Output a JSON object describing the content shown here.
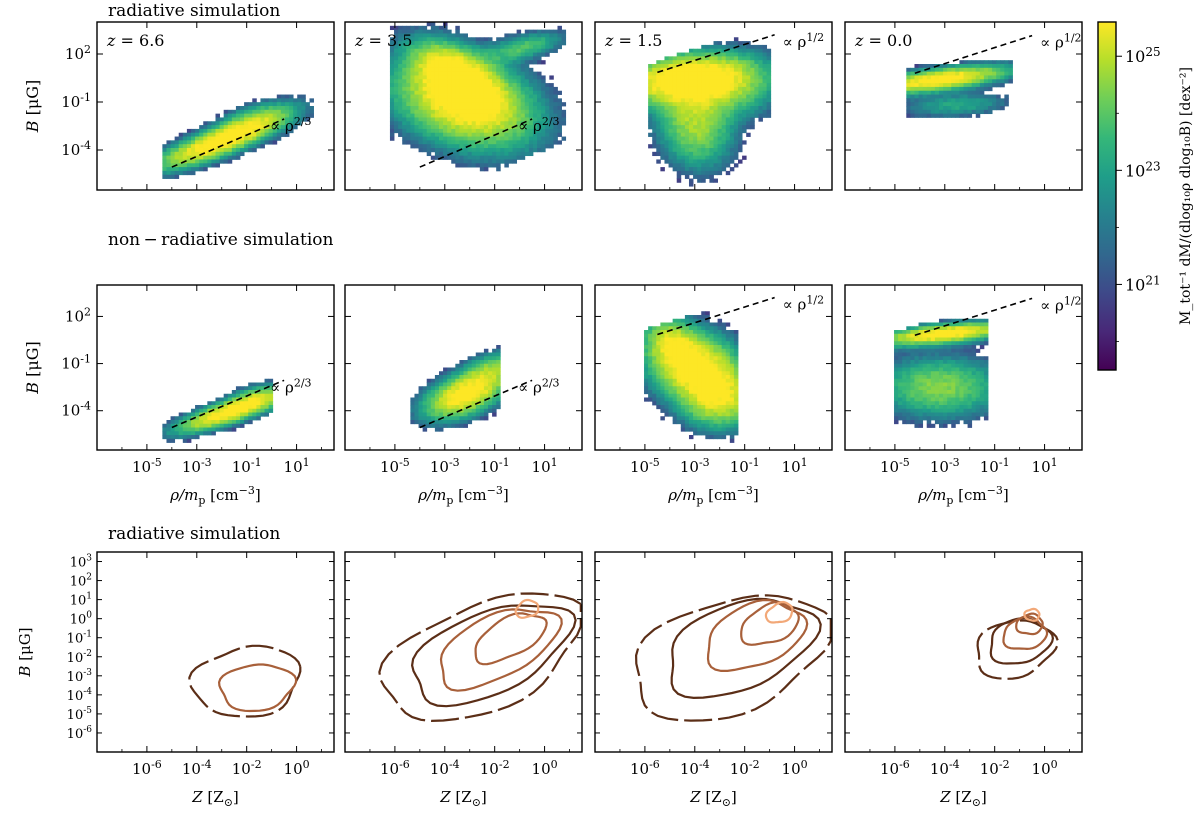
{
  "figure": {
    "row_titles": [
      "radiative simulation",
      "non − radiative simulation",
      "radiative simulation"
    ],
    "colors": {
      "contour_dark": "#5b2e17",
      "contour_mid": "#a8603a",
      "contour_light": "#f2a878",
      "dashed": "#000000"
    }
  },
  "chart_data": [
    {
      "type": "heatmap",
      "group": "radiative",
      "row": 0,
      "xlabel": "ρ/m_p [cm⁻³]",
      "ylabel": "B [μG]",
      "xlim_log10": [
        -7,
        2.5
      ],
      "ylim_log10": [
        -6.5,
        4.0
      ],
      "xticks": [
        "10⁻⁵",
        "10⁻³",
        "10⁻¹",
        "10¹"
      ],
      "yticks": [
        "10⁻⁴",
        "10⁻¹",
        "10²"
      ],
      "panels": [
        {
          "label": "z = 6.6",
          "fit_label": "∝ ρ^2/3",
          "fit_slope": 0.667,
          "fit_point": [
            -3,
            -4.4
          ],
          "fit_x": [
            -4.0,
            0.5
          ]
        },
        {
          "label": "z = 3.5",
          "fit_label": "∝ ρ^2/3",
          "fit_slope": 0.667,
          "fit_point": [
            -3,
            -4.4
          ],
          "fit_x": [
            -4.0,
            0.5
          ]
        },
        {
          "label": "z = 1.5",
          "fit_label": "∝ ρ^1/2",
          "fit_slope": 0.5,
          "fit_point": [
            -3,
            1.6
          ],
          "fit_x": [
            -4.5,
            0.2
          ]
        },
        {
          "label": "z = 0.0",
          "fit_label": "∝ ρ^1/2",
          "fit_slope": 0.5,
          "fit_point": [
            -3,
            1.4
          ],
          "fit_x": [
            -4.2,
            0.5
          ]
        }
      ]
    },
    {
      "type": "heatmap",
      "group": "non-radiative",
      "row": 1,
      "xlabel": "ρ/m_p [cm⁻³]",
      "ylabel": "B [μG]",
      "xlim_log10": [
        -7,
        2.5
      ],
      "ylim_log10": [
        -6.5,
        4.0
      ],
      "xticks": [
        "10⁻⁵",
        "10⁻³",
        "10⁻¹",
        "10¹"
      ],
      "yticks": [
        "10⁻⁴",
        "10⁻¹",
        "10²"
      ],
      "panels": [
        {
          "fit_label": "∝ ρ^2/3",
          "fit_slope": 0.667,
          "fit_point": [
            -3,
            -4.4
          ],
          "fit_x": [
            -4.0,
            0.5
          ]
        },
        {
          "fit_label": "∝ ρ^2/3",
          "fit_slope": 0.667,
          "fit_point": [
            -3,
            -4.4
          ],
          "fit_x": [
            -4.0,
            0.5
          ]
        },
        {
          "fit_label": "∝ ρ^1/2",
          "fit_slope": 0.5,
          "fit_point": [
            -3,
            1.6
          ],
          "fit_x": [
            -4.5,
            0.2
          ]
        },
        {
          "fit_label": "∝ ρ^1/2",
          "fit_slope": 0.5,
          "fit_point": [
            -3,
            1.4
          ],
          "fit_x": [
            -4.2,
            0.5
          ]
        }
      ]
    },
    {
      "type": "contour",
      "group": "radiative",
      "row": 2,
      "xlabel": "Z [Z⊙]",
      "ylabel": "B [μG]",
      "xlim_log10": [
        -8,
        1.5
      ],
      "ylim_log10": [
        -7,
        3.5
      ],
      "xticks": [
        "10⁻⁶",
        "10⁻⁴",
        "10⁻²",
        "10⁰"
      ],
      "yticks": [
        "10⁻⁶",
        "10⁻⁵",
        "10⁻⁴",
        "10⁻³",
        "10⁻²",
        "10⁻¹",
        "10⁰",
        "10¹",
        "10²",
        "10³"
      ],
      "panels": [
        {
          "contours": [
            {
              "c": [
                -2.0,
                -3.3
              ],
              "r": [
                2.2,
                1.8
              ],
              "rot": 20,
              "level": 0
            },
            {
              "c": [
                -1.6,
                -3.6
              ],
              "r": [
                1.5,
                1.2
              ],
              "rot": 15,
              "level": 1
            }
          ]
        },
        {
          "contours": [
            {
              "c": [
                -2.5,
                -2.0
              ],
              "r": [
                4.5,
                2.6
              ],
              "rot": 35,
              "level": 0
            },
            {
              "c": [
                -2.2,
                -1.8
              ],
              "r": [
                3.6,
                2.0
              ],
              "rot": 35,
              "level": 0
            },
            {
              "c": [
                -1.9,
                -1.5
              ],
              "r": [
                2.8,
                1.5
              ],
              "rot": 38,
              "level": 1
            },
            {
              "c": [
                -1.4,
                -1.0
              ],
              "r": [
                1.7,
                0.9
              ],
              "rot": 40,
              "level": 1
            },
            {
              "c": [
                -0.7,
                0.5
              ],
              "r": [
                0.5,
                0.4
              ],
              "rot": 45,
              "level": 2
            }
          ]
        },
        {
          "contours": [
            {
              "c": [
                -2.6,
                -2.0
              ],
              "r": [
                4.3,
                2.8
              ],
              "rot": 32,
              "level": 0
            },
            {
              "c": [
                -2.2,
                -1.5
              ],
              "r": [
                3.3,
                2.1
              ],
              "rot": 35,
              "level": 0
            },
            {
              "c": [
                -1.6,
                -0.9
              ],
              "r": [
                2.2,
                1.5
              ],
              "rot": 38,
              "level": 1
            },
            {
              "c": [
                -1.0,
                -0.3
              ],
              "r": [
                1.3,
                0.9
              ],
              "rot": 40,
              "level": 1
            },
            {
              "c": [
                -0.6,
                0.3
              ],
              "r": [
                0.6,
                0.45
              ],
              "rot": 45,
              "level": 2
            }
          ]
        },
        {
          "contours": [
            {
              "c": [
                -1.2,
                -1.6
              ],
              "r": [
                1.7,
                1.4
              ],
              "rot": 40,
              "level": 0
            },
            {
              "c": [
                -1.0,
                -1.2
              ],
              "r": [
                1.3,
                1.1
              ],
              "rot": 40,
              "level": 0
            },
            {
              "c": [
                -0.8,
                -0.8
              ],
              "r": [
                0.9,
                0.8
              ],
              "rot": 40,
              "level": 1
            },
            {
              "c": [
                -0.6,
                -0.3
              ],
              "r": [
                0.55,
                0.5
              ],
              "rot": 40,
              "level": 1
            },
            {
              "c": [
                -0.5,
                0.2
              ],
              "r": [
                0.3,
                0.3
              ],
              "rot": 40,
              "level": 2
            }
          ]
        }
      ]
    },
    {
      "type": "colorbar",
      "label": "M_tot⁻¹ dM/(dlog₁₀ρ dlog₁₀B) [dex⁻²]",
      "range_log10": [
        19.5,
        25.6
      ],
      "ticks": [
        "10²¹",
        "10²³",
        "10²⁵"
      ],
      "tick_values_log10": [
        21,
        23,
        25
      ],
      "colormap": [
        "#440154",
        "#482878",
        "#3e4989",
        "#31688e",
        "#26828e",
        "#1f9e89",
        "#35b779",
        "#6ece58",
        "#b5de2b",
        "#fde725"
      ]
    }
  ]
}
